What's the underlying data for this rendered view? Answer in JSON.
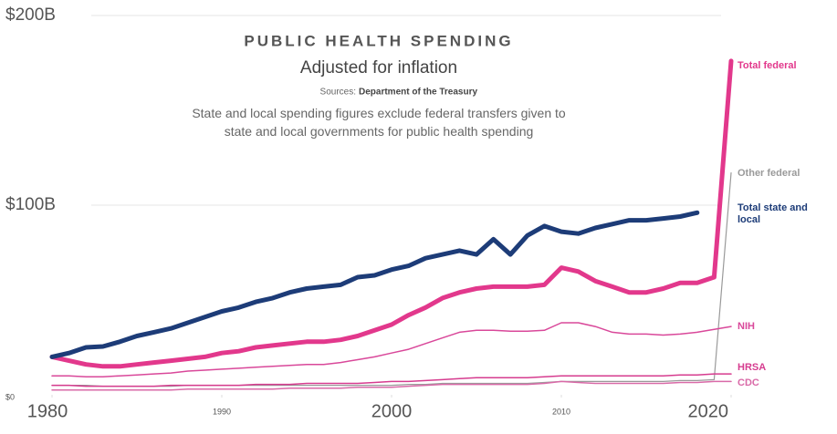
{
  "chart_data": {
    "type": "line",
    "title": "PUBLIC HEALTH SPENDING",
    "subtitle": "Adjusted for inflation",
    "source_label": "Sources:",
    "source": "Department of the Treasury",
    "note": "State and local spending figures exclude federal transfers given to state and local governments for public health spending",
    "x": [
      1980,
      1981,
      1982,
      1983,
      1984,
      1985,
      1986,
      1987,
      1988,
      1989,
      1990,
      1991,
      1992,
      1993,
      1994,
      1995,
      1996,
      1997,
      1998,
      1999,
      2000,
      2001,
      2002,
      2003,
      2004,
      2005,
      2006,
      2007,
      2008,
      2009,
      2010,
      2011,
      2012,
      2013,
      2014,
      2015,
      2016,
      2017,
      2018,
      2019,
      2020
    ],
    "xlim": [
      1980,
      2020
    ],
    "xticks": [
      1980,
      1990,
      2000,
      2010,
      2020
    ],
    "ylim": [
      0,
      200
    ],
    "yticks": [
      {
        "value": 0,
        "label": "$0"
      },
      {
        "value": 100,
        "label": "$100B"
      },
      {
        "value": 200,
        "label": "$200B"
      }
    ],
    "grid": true,
    "series": [
      {
        "name": "Total federal",
        "color": "#e2388c",
        "values": [
          20,
          18,
          16,
          15,
          15,
          16,
          17,
          18,
          19,
          20,
          22,
          23,
          25,
          26,
          27,
          28,
          28,
          29,
          31,
          34,
          37,
          42,
          46,
          51,
          54,
          56,
          57,
          57,
          57,
          58,
          67,
          65,
          60,
          57,
          54,
          54,
          56,
          59,
          59,
          62,
          176
        ]
      },
      {
        "name": "Other federal",
        "color": "#9a9a9a",
        "values": [
          5,
          5,
          5,
          4.5,
          4.5,
          4.5,
          4.5,
          4.5,
          5,
          5,
          5,
          5,
          5,
          5,
          5,
          5,
          5,
          5,
          5,
          5,
          5,
          5.5,
          5.5,
          6,
          6,
          6,
          6,
          6,
          6,
          6.5,
          7,
          7,
          7,
          7,
          7,
          7,
          7,
          7.5,
          7.5,
          8,
          117
        ]
      },
      {
        "name": "Total state and local",
        "color": "#1d3c78",
        "values": [
          20,
          22,
          25,
          25.5,
          28,
          31,
          33,
          35,
          38,
          41,
          44,
          46,
          49,
          51,
          54,
          56,
          57,
          58,
          62,
          63,
          66,
          68,
          72,
          74,
          76,
          74,
          82,
          74,
          84,
          89,
          86,
          85,
          88,
          90,
          92,
          92,
          93,
          94,
          96,
          null,
          null
        ]
      },
      {
        "name": "NIH",
        "color": "#d9489a",
        "values": [
          10,
          10,
          9.5,
          9.5,
          10,
          10.5,
          11,
          11.5,
          12.5,
          13,
          13.5,
          14,
          14.5,
          15,
          15.5,
          16,
          16,
          17,
          18.5,
          20,
          22,
          24,
          27,
          30,
          33,
          34,
          34,
          33.5,
          33.5,
          34,
          38,
          38,
          36,
          33,
          32,
          32,
          31.5,
          32,
          33,
          34.5,
          36
        ]
      },
      {
        "name": "HRSA",
        "color": "#d63c8f",
        "values": [
          5,
          5,
          4.5,
          4.5,
          4.5,
          4.5,
          4.5,
          5,
          5,
          5,
          5,
          5,
          5.5,
          5.5,
          5.5,
          6,
          6,
          6,
          6,
          6.5,
          7,
          7,
          7.5,
          8,
          8.5,
          9,
          9,
          9,
          9,
          9.5,
          10,
          10,
          10,
          10,
          10,
          10,
          10,
          10.5,
          10.5,
          11,
          11
        ]
      },
      {
        "name": "CDC",
        "color": "#d96aa8",
        "values": [
          2.5,
          2.5,
          2.5,
          2.5,
          2.5,
          2.5,
          2.5,
          2.5,
          3,
          3,
          3,
          3,
          3,
          3,
          3.5,
          3.5,
          3.5,
          3.5,
          4,
          4,
          4,
          4.5,
          5,
          5.5,
          5.5,
          5.5,
          5.5,
          5.5,
          5.5,
          6,
          7,
          6.5,
          6,
          6,
          6,
          6,
          6,
          6.5,
          6.5,
          7,
          7
        ]
      }
    ]
  }
}
